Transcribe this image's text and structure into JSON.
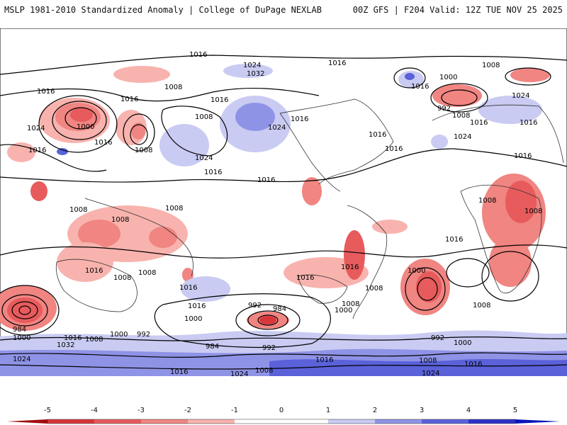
{
  "header": {
    "left": "MSLP 1981-2010 Standardized Anomaly | College of DuPage NEXLAB",
    "right": "00Z GFS | F204 Valid: 12Z TUE NOV 25 2025"
  },
  "isobar_labels": [
    "1016",
    "1024",
    "1032",
    "1008",
    "1000",
    "992",
    "984"
  ],
  "colorbar": {
    "ticks": [
      "-5",
      "-4",
      "-3",
      "-2",
      "-1",
      "0",
      "1",
      "2",
      "3",
      "4",
      "5"
    ],
    "colors": [
      "#c4171b",
      "#d8363a",
      "#e75b5d",
      "#f08582",
      "#f8b3ae",
      "#ffffff",
      "#ffffff",
      "#c9cbf2",
      "#8f93e6",
      "#5a61d9",
      "#2c31c9",
      "#0a14b8"
    ]
  }
}
